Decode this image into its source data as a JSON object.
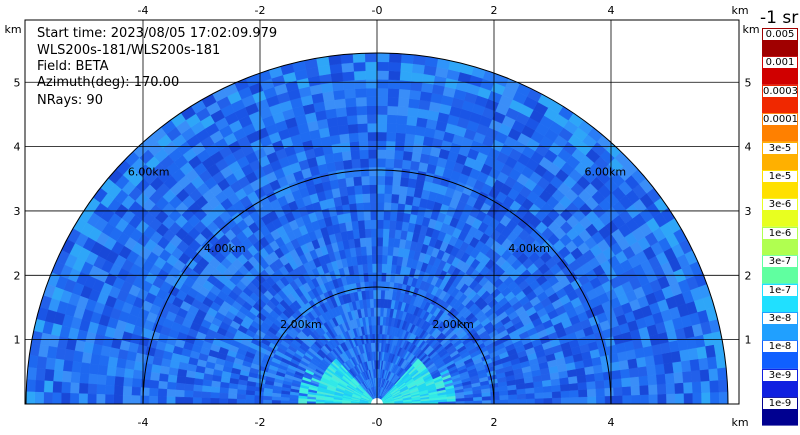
{
  "info": {
    "start_time": "Start time: 2023/08/05 17:02:09.979",
    "station": "WLS200s-181/WLS200s-181",
    "field": "Field: BETA",
    "azimuth": "Azimuth(deg): 170.00",
    "nrays": "NRays: 90"
  },
  "axes": {
    "x_unit": "km",
    "y_unit": "km",
    "x_ticks": [
      "-4",
      "-2",
      "-0",
      "2",
      "4"
    ],
    "y_ticks": [
      "1",
      "2",
      "3",
      "4",
      "5"
    ]
  },
  "rings": [
    {
      "label": "2.00km"
    },
    {
      "label": "4.00km"
    },
    {
      "label": "6.00km"
    }
  ],
  "colorbar": {
    "unit": "-1 sr",
    "labels": [
      "0.005",
      "0.001",
      "0.0003",
      "0.0001",
      "3e-5",
      "1e-5",
      "3e-6",
      "1e-6",
      "3e-7",
      "1e-7",
      "3e-8",
      "1e-8",
      "3e-9",
      "1e-9"
    ],
    "colors": [
      "#a00000",
      "#d00000",
      "#f02800",
      "#ff8000",
      "#ffb000",
      "#ffe000",
      "#e8ff20",
      "#b0ff50",
      "#60ffa0",
      "#20e0ff",
      "#20a0ff",
      "#1060ff",
      "#1020e0",
      "#000090"
    ]
  },
  "chart_data": {
    "type": "heatmap",
    "field": "BETA",
    "azimuth_deg": 170.0,
    "nrays": 90,
    "xlim_km": [
      -6.1,
      6.0
    ],
    "ylim_km": [
      0,
      6.0
    ],
    "max_range_km": 6.0,
    "range_rings_km": [
      2,
      4,
      6
    ],
    "dominant_value_by_range": [
      {
        "range_km": 0.5,
        "value": "3e-7"
      },
      {
        "range_km": 1.0,
        "value": "1e-7"
      },
      {
        "range_km": 2.0,
        "value": "3e-8"
      },
      {
        "range_km": 4.0,
        "value": "3e-8"
      },
      {
        "range_km": 6.0,
        "value": "3e-8"
      }
    ]
  }
}
